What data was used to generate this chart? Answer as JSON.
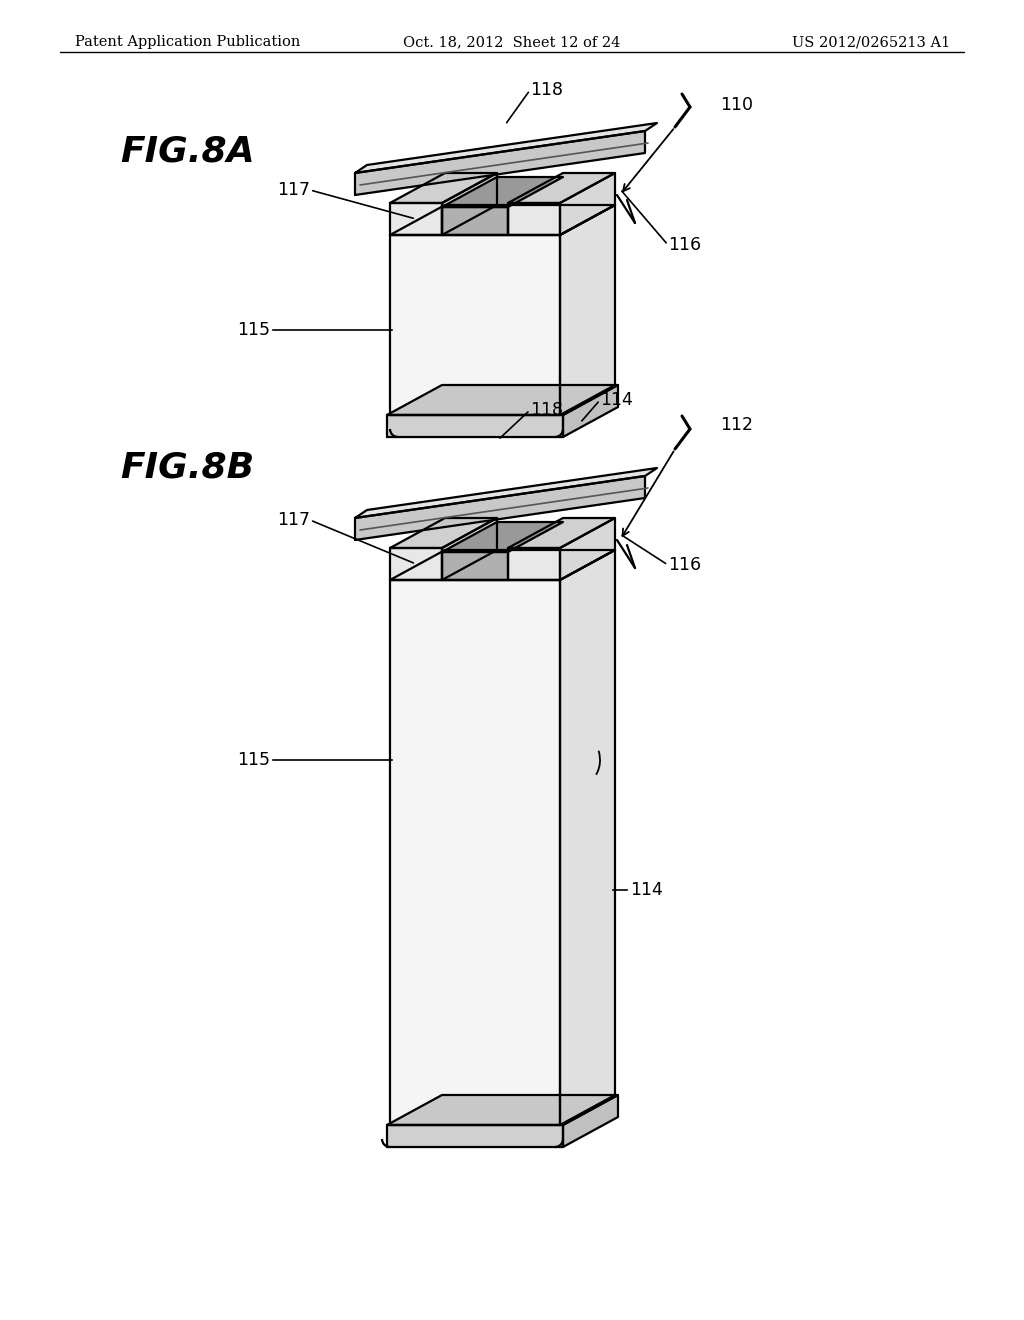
{
  "background_color": "#ffffff",
  "header_left": "Patent Application Publication",
  "header_center": "Oct. 18, 2012  Sheet 12 of 24",
  "header_right": "US 2012/0265213 A1",
  "line_color": "#000000",
  "line_width": 1.6,
  "label_fontsize": 12.5,
  "fig8a_label": "FIG.8A",
  "fig8b_label": "FIG.8B"
}
